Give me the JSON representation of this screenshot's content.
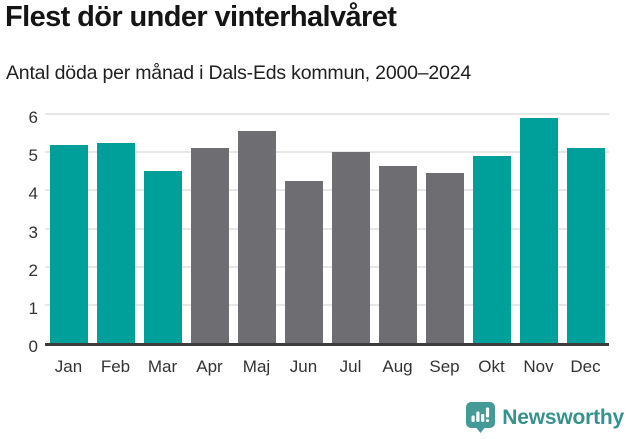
{
  "header": {
    "title": "Flest dör under vinterhalvåret",
    "subtitle": "Antal döda per månad i Dals-Eds kommun, 2000–2024"
  },
  "chart_data": {
    "type": "bar",
    "title": "Flest dör under vinterhalvåret",
    "subtitle": "Antal döda per månad i Dals-Eds kommun, 2000–2024",
    "categories": [
      "Jan",
      "Feb",
      "Mar",
      "Apr",
      "Maj",
      "Jun",
      "Jul",
      "Aug",
      "Sep",
      "Okt",
      "Nov",
      "Dec"
    ],
    "values": [
      5.2,
      5.25,
      4.5,
      5.1,
      5.55,
      4.25,
      5.0,
      4.65,
      4.45,
      4.9,
      5.9,
      5.1
    ],
    "bar_colors": [
      "teal",
      "teal",
      "teal",
      "gray",
      "gray",
      "gray",
      "gray",
      "gray",
      "gray",
      "teal",
      "teal",
      "teal"
    ],
    "colors": {
      "teal": "#00a09a",
      "gray": "#6d6d72"
    },
    "highlighted_categories": [
      "Jan",
      "Feb",
      "Mar",
      "Okt",
      "Nov",
      "Dec"
    ],
    "xlabel": "",
    "ylabel": "",
    "ylim": [
      0,
      6
    ],
    "yticks": [
      0,
      1,
      2,
      3,
      4,
      5,
      6
    ],
    "grid": true,
    "legend": false
  },
  "footer": {
    "brand": "Newsworthy",
    "brand_color": "#37918d",
    "logo_icon": "bar-chart-speech-bubble"
  }
}
